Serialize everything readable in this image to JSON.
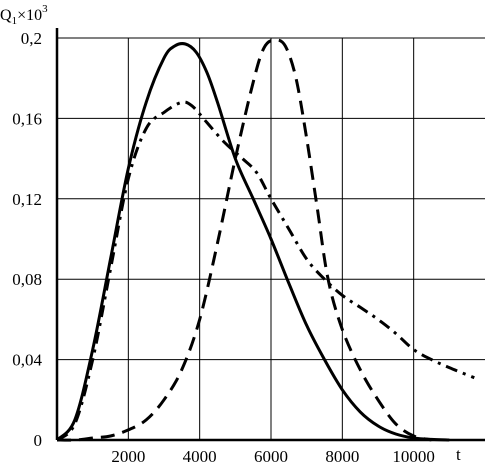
{
  "chart_data": {
    "type": "line",
    "ylabel": {
      "base": "Q",
      "sub": "1",
      "mult": "×10",
      "sup": "3"
    },
    "xlabel": "t",
    "xlim": [
      0,
      12000
    ],
    "ylim": [
      0,
      0.2
    ],
    "x_ticks": [
      2000,
      4000,
      6000,
      8000,
      10000
    ],
    "x_tick_labels": [
      "2000",
      "4000",
      "6000",
      "8000",
      "10000"
    ],
    "y_ticks": [
      0,
      0.04,
      0.08,
      0.12,
      0.16,
      0.2
    ],
    "y_tick_labels": [
      "0",
      "0,04",
      "0,08",
      "0,12",
      "0,16",
      "0,2"
    ],
    "grid": true,
    "series": [
      {
        "style": "solid",
        "x": [
          0,
          500,
          1000,
          1500,
          2000,
          2500,
          3000,
          3300,
          3600,
          3900,
          4200,
          4500,
          5000,
          5500,
          6000,
          6500,
          7000,
          7500,
          8000,
          8500,
          9000,
          9500,
          10000,
          10500,
          11000
        ],
        "y": [
          0,
          0.01,
          0.045,
          0.09,
          0.135,
          0.168,
          0.19,
          0.196,
          0.197,
          0.193,
          0.183,
          0.168,
          0.14,
          0.12,
          0.1,
          0.078,
          0.057,
          0.04,
          0.025,
          0.014,
          0.007,
          0.003,
          0.001,
          0.0003,
          0
        ]
      },
      {
        "style": "dashed",
        "x": [
          0,
          500,
          1000,
          1500,
          2000,
          2500,
          3000,
          3500,
          4000,
          4500,
          5000,
          5500,
          5800,
          6100,
          6400,
          6700,
          7000,
          7300,
          7600,
          8000,
          8500,
          9000,
          9500,
          10000,
          10500
        ],
        "y": [
          0,
          0,
          0.001,
          0.002,
          0.005,
          0.01,
          0.02,
          0.035,
          0.06,
          0.098,
          0.14,
          0.178,
          0.195,
          0.199,
          0.196,
          0.18,
          0.15,
          0.115,
          0.08,
          0.055,
          0.035,
          0.02,
          0.008,
          0.002,
          0
        ]
      },
      {
        "style": "dashdot",
        "x": [
          0,
          500,
          1000,
          1500,
          2000,
          2500,
          3000,
          3500,
          3800,
          4200,
          4700,
          5200,
          5600,
          6000,
          6500,
          7000,
          7500,
          8000,
          8500,
          9000,
          9500,
          10000,
          10500,
          11000,
          11700
        ],
        "y": [
          0,
          0.008,
          0.04,
          0.085,
          0.13,
          0.155,
          0.163,
          0.168,
          0.166,
          0.158,
          0.148,
          0.14,
          0.133,
          0.12,
          0.105,
          0.09,
          0.08,
          0.072,
          0.066,
          0.06,
          0.053,
          0.045,
          0.04,
          0.036,
          0.031
        ]
      }
    ]
  }
}
